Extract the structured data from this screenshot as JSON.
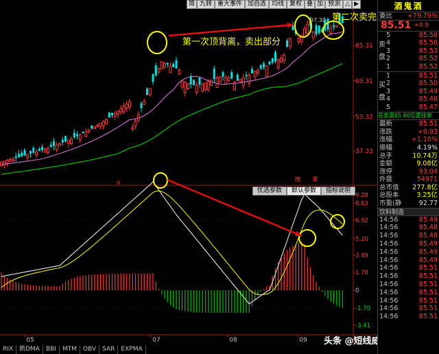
{
  "toolbar": [
    "简",
    "九转",
    "重大事件",
    "加自选",
    "均线",
    "复权",
    "叠",
    "加",
    "预测",
    "△",
    "▶"
  ],
  "price_axis": [
    "85.31",
    "69.31",
    "53.32",
    "37.33"
  ],
  "macd_axis": [
    "9.28",
    "8.63",
    "6.92",
    "5.20",
    "3.49",
    "1.78",
    "0",
    "-1.70",
    "-3.41"
  ],
  "marks": {
    "high_label": "97.30",
    "top_markers": [
      "榜",
      "港"
    ],
    "low_marker": "q"
  },
  "annotations": {
    "first": "第一次顶背离，卖出部分",
    "second": "第二次卖完"
  },
  "indicator_tabs": [
    "优选参数",
    "默认参数",
    "指标说明"
  ],
  "months": [
    "05",
    "07",
    "08",
    "09"
  ],
  "bottom_tabs": [
    "RIX",
    "新DMA",
    "BBI",
    "MTM",
    "OBV",
    "SAR",
    "EXPMA"
  ],
  "watermark": "头条 @短线威哥",
  "panel": {
    "title": "酒鬼酒",
    "ratio_label": "委比",
    "ratio_value": "+79.79%",
    "price": "85.51",
    "price_change": "+0.9",
    "sell_side": "卖盘",
    "buy_side": "买盘",
    "sell": [
      {
        "lv": "5",
        "price": "85.58"
      },
      {
        "lv": "4",
        "price": "85.56"
      },
      {
        "lv": "3",
        "price": "85.53"
      },
      {
        "lv": "2",
        "price": "85.52"
      },
      {
        "lv": "1",
        "price": "85.52"
      }
    ],
    "buy": [
      {
        "lv": "1",
        "price": "85.51"
      },
      {
        "lv": "2",
        "price": "85.50"
      },
      {
        "lv": "3",
        "price": "85.49"
      },
      {
        "lv": "4",
        "price": "85.48"
      },
      {
        "lv": "5",
        "price": "85.47"
      }
    ],
    "queue_line": "在卖盘85.60位置挂单",
    "stats": [
      {
        "label": "最新",
        "value": "85.51",
        "color": "red"
      },
      {
        "label": "涨跌",
        "value": "+0.93",
        "color": "red"
      },
      {
        "label": "涨幅",
        "value": "+1.10%",
        "color": "red"
      },
      {
        "label": "振幅",
        "value": "4.19%",
        "color": "white"
      },
      {
        "label": "总手",
        "value": "10.74万",
        "color": "yellow"
      },
      {
        "label": "金额",
        "value": "9.08亿",
        "color": "yellow"
      },
      {
        "label": "涨停",
        "value": "93.04",
        "color": "red"
      },
      {
        "label": "外盘",
        "value": "54971",
        "color": "red"
      },
      {
        "label": "总市值",
        "value": "277.8亿",
        "color": "yellow"
      },
      {
        "label": "总股本",
        "value": "3.25亿",
        "color": "yellow"
      },
      {
        "label": "市盈(静)",
        "value": "92.77",
        "color": "white"
      }
    ],
    "industry": "饮料制造",
    "ticks": [
      {
        "time": "14:56",
        "price": "85.49"
      },
      {
        "time": "14:56",
        "price": "85.48"
      },
      {
        "time": "14:56",
        "price": "85.48"
      },
      {
        "time": "14:56",
        "price": "85.49"
      },
      {
        "time": "14:56",
        "price": "85.49"
      },
      {
        "time": "14:56",
        "price": "85.49"
      },
      {
        "time": "14:56",
        "price": "85.51"
      },
      {
        "time": "14:56",
        "price": "85.51"
      },
      {
        "time": "14:56",
        "price": "85.51"
      },
      {
        "time": "14:56",
        "price": "85.51"
      },
      {
        "time": "14:56",
        "price": "85.51"
      },
      {
        "time": "14:56",
        "price": "85.51"
      },
      {
        "time": "14:56",
        "price": "85.51"
      }
    ]
  },
  "colors": {
    "up": "#ff3b3b",
    "down": "#00e0e0",
    "ma_long": "#00c000",
    "ma_mid": "#d070d0",
    "dif": "#ffffff",
    "dea": "#ffff00",
    "annotation": "#ffff00",
    "arrow": "#e01010"
  }
}
